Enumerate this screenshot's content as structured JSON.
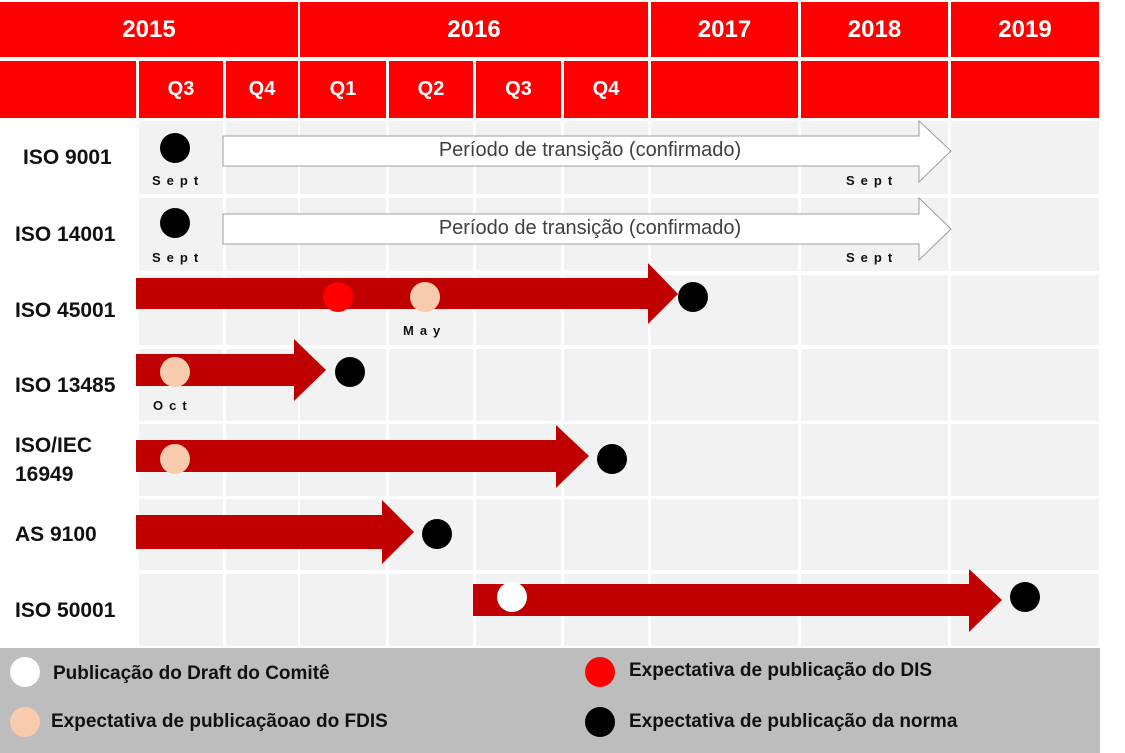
{
  "header": {
    "years": [
      "2015",
      "2016",
      "2017",
      "2018",
      "2019"
    ],
    "quarters": [
      "Q3",
      "Q4",
      "Q1",
      "Q2",
      "Q3",
      "Q4"
    ]
  },
  "rows": [
    {
      "label": "ISO 9001",
      "transition": {
        "text": "Período de transição (confirmado)"
      },
      "months": [
        "Sept",
        "Sept"
      ],
      "dots": [
        {
          "type": "norma"
        }
      ]
    },
    {
      "label": "ISO 14001",
      "transition": {
        "text": "Período de transição (confirmado)"
      },
      "months": [
        "Sept",
        "Sept"
      ],
      "dots": [
        {
          "type": "norma"
        }
      ]
    },
    {
      "label": "ISO 45001",
      "months": [
        "May"
      ],
      "dots": [
        {
          "type": "dis"
        },
        {
          "type": "fdis"
        },
        {
          "type": "norma"
        }
      ]
    },
    {
      "label": "ISO 13485",
      "months": [
        "Oct"
      ],
      "dots": [
        {
          "type": "fdis"
        },
        {
          "type": "norma"
        }
      ]
    },
    {
      "label": "ISO/IEC\n16949",
      "months": [],
      "dots": [
        {
          "type": "fdis"
        },
        {
          "type": "norma"
        }
      ]
    },
    {
      "label": "AS 9100",
      "months": [],
      "dots": [
        {
          "type": "norma"
        }
      ]
    },
    {
      "label": "ISO 50001",
      "months": [],
      "dots": [
        {
          "type": "cd"
        },
        {
          "type": "norma"
        }
      ]
    }
  ],
  "legend": {
    "cd": "Publicação do Draft do Comitê",
    "fdis": "Expectativa de publicaçãoao do FDIS",
    "dis": "Expectativa de publicação do DIS",
    "norma": "Expectativa de publicação da norma"
  },
  "colors": {
    "header_red": "#ff0000",
    "arrow_red": "#c00000",
    "cd": "#ffffff",
    "fdis": "#f8cbad",
    "dis": "#ff0000",
    "norma": "#000000",
    "cell_bg": "#f2f2f2",
    "legend_bg": "#bdbdbd"
  }
}
